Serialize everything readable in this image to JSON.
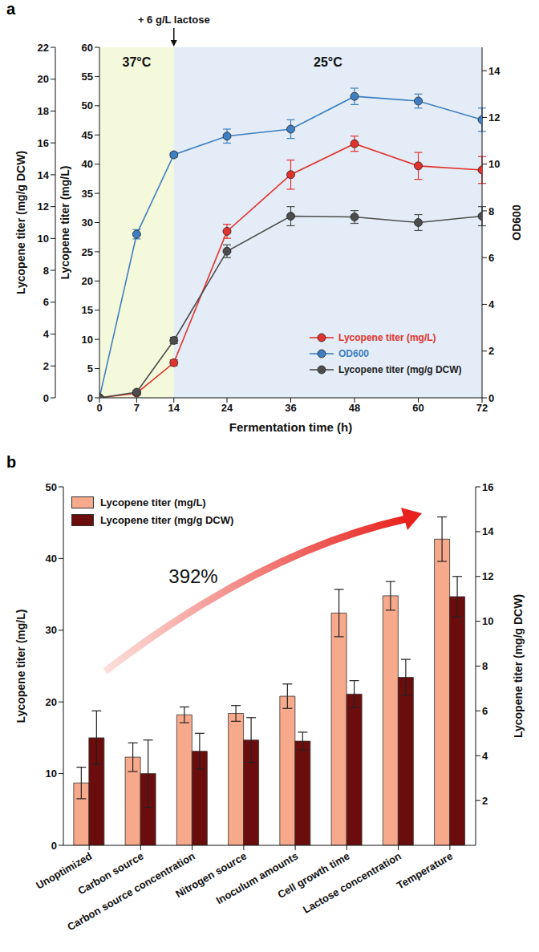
{
  "chart_data": [
    {
      "panel": "a",
      "type": "line",
      "x_label": "Fermentation time (h)",
      "x": [
        0,
        7,
        14,
        24,
        36,
        48,
        60,
        72
      ],
      "xlim": [
        0,
        72
      ],
      "xticks": [
        0,
        7,
        14,
        24,
        36,
        48,
        60,
        72
      ],
      "ylim": [
        0,
        60
      ],
      "yticks": [
        0,
        5,
        10,
        15,
        20,
        25,
        30,
        35,
        40,
        45,
        50,
        55,
        60
      ],
      "y_label": "Lycopene titer (mg/L)",
      "y2lim": [
        0,
        15
      ],
      "y2ticks": [
        0,
        2,
        4,
        6,
        8,
        10,
        12,
        14
      ],
      "y2_label": "OD600",
      "y3lim": [
        0,
        22
      ],
      "y3ticks": [
        0,
        2,
        4,
        6,
        8,
        10,
        12,
        14,
        16,
        18,
        20,
        22
      ],
      "y3_label": "Lycopene titer (mg/g DCW)",
      "marker": "circle",
      "legend": "lower right",
      "phases": [
        {
          "label": "37°C",
          "start": 0,
          "end": 14,
          "color": "#f5f9dc"
        },
        {
          "label": "25°C",
          "start": 14,
          "end": 72,
          "color": "#e3ecf7"
        }
      ],
      "annotations": [
        {
          "text": "+ 6 g/L lactose",
          "x": 14
        }
      ],
      "series": [
        {
          "name": "Lycopene titer (mg/L)",
          "color": "#e3322b",
          "axis": "y",
          "values": [
            0,
            0.8,
            6,
            28.5,
            38.2,
            43.5,
            39.7,
            39
          ],
          "errors": [
            0,
            0.3,
            0.5,
            1.2,
            2.5,
            1.3,
            2.3,
            2.3
          ]
        },
        {
          "name": "OD600",
          "color": "#3f7fc1",
          "axis": "y2",
          "values": [
            0,
            7,
            10.4,
            11.2,
            11.5,
            12.9,
            12.7,
            11.9
          ],
          "errors": [
            0,
            0.2,
            0.1,
            0.3,
            0.4,
            0.35,
            0.3,
            0.5
          ]
        },
        {
          "name": "Lycopene titer (mg/g DCW)",
          "color": "#4d4d4d",
          "axis": "y3",
          "values": [
            0,
            0.35,
            3.6,
            9.2,
            11.4,
            11.35,
            11.0,
            11.4
          ],
          "errors": [
            0,
            0.1,
            0.2,
            0.4,
            0.6,
            0.4,
            0.5,
            0.6
          ]
        }
      ]
    },
    {
      "panel": "b",
      "type": "bar",
      "categories": [
        "Unoptimized",
        "Carbon source",
        "Carbon source concentration",
        "Nitrogen source",
        "Inoculum amounts",
        "Cell growth time",
        "Lactose concentration",
        "Temperature"
      ],
      "y_label": "Lycopene titer (mg/L)",
      "ylim": [
        0,
        50
      ],
      "yticks": [
        0,
        10,
        20,
        30,
        40,
        50
      ],
      "y2_label": "Lycopene titer (mg/g DCW)",
      "y2lim": [
        0,
        16
      ],
      "y2ticks": [
        2,
        4,
        6,
        8,
        10,
        12,
        14,
        16
      ],
      "legend": "upper left",
      "annotations": [
        {
          "text": "392%"
        }
      ],
      "series": [
        {
          "name": "Lycopene titer (mg/L)",
          "color": "#f7a98b",
          "axis": "y",
          "values": [
            8.7,
            12.3,
            18.2,
            18.4,
            20.8,
            32.4,
            34.8,
            42.7
          ],
          "errors": [
            2.2,
            2.0,
            1.1,
            1.1,
            1.7,
            3.3,
            2.0,
            3.1
          ]
        },
        {
          "name": "Lycopene titer (mg/g DCW)",
          "color": "#6b0d0d",
          "axis": "y2",
          "values": [
            4.8,
            3.2,
            4.2,
            4.7,
            4.65,
            6.75,
            7.5,
            11.1
          ],
          "errors": [
            1.2,
            1.5,
            0.8,
            1.0,
            0.4,
            0.6,
            0.8,
            0.9
          ]
        }
      ]
    }
  ]
}
